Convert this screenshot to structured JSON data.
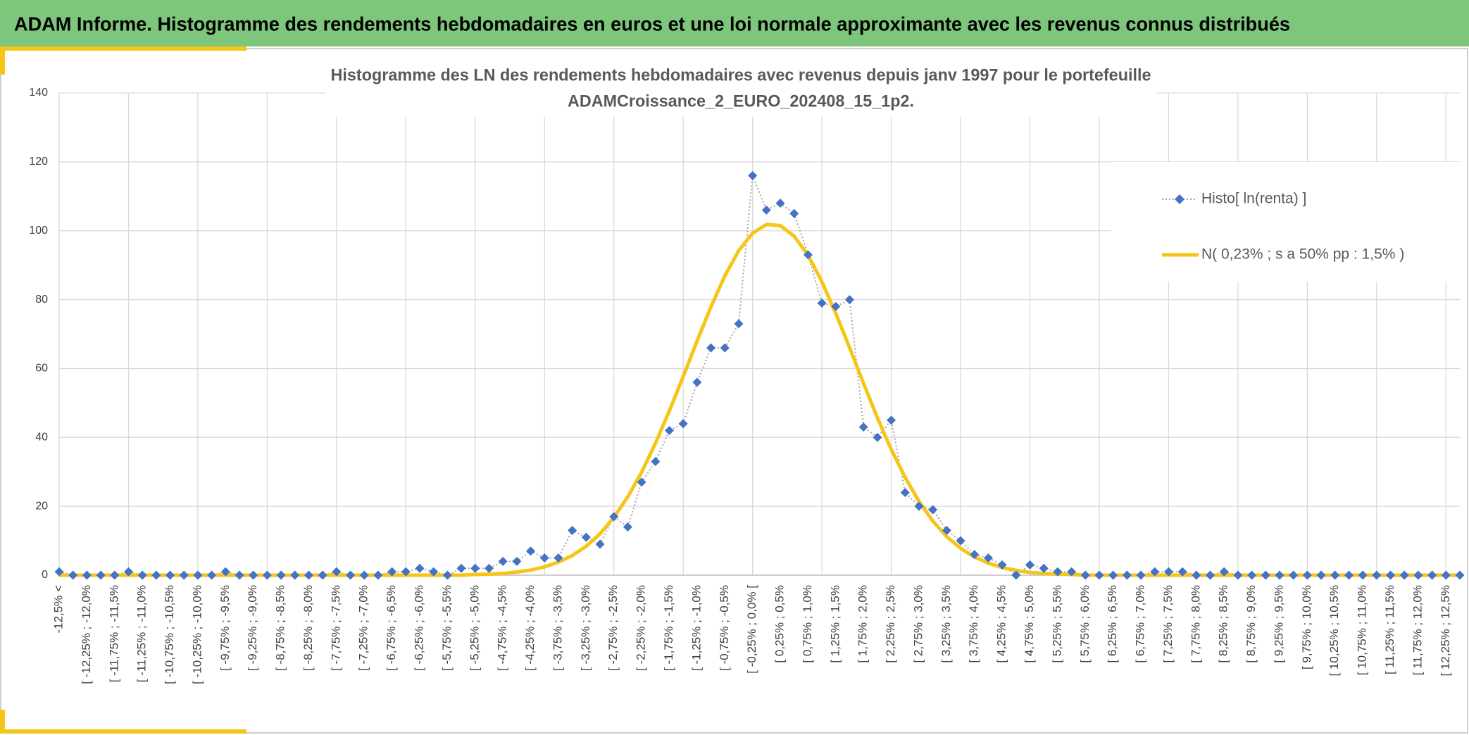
{
  "header": {
    "title": "ADAM Informe. Histogramme des rendements hebdomadaires en euros et une loi normale approximante avec les revenus connus distribués"
  },
  "chart_data": {
    "type": "line",
    "title_lines": [
      "Histogramme des LN des rendements hebdomadaires avec revenus depuis janv 1997 pour le portefeuille",
      "ADAMCroissance_2_EURO_202408_15_1p2."
    ],
    "categories": [
      "-12,5% <",
      null,
      "[ -12,25% ; -12,0%",
      null,
      "[ -11,75% ; -11,5%",
      null,
      "[ -11,25% ; -11,0%",
      null,
      "[ -10,75% ; -10,5%",
      null,
      "[ -10,25% ; -10,0%",
      null,
      "[ -9,75% ; -9,5%",
      null,
      "[ -9,25% ; -9,0%",
      null,
      "[ -8,75% ; -8,5%",
      null,
      "[ -8,25% ; -8,0%",
      null,
      "[ -7,75% ; -7,5%",
      null,
      "[ -7,25% ; -7,0%",
      null,
      "[ -6,75% ; -6,5%",
      null,
      "[ -6,25% ; -6,0%",
      null,
      "[ -5,75% ; -5,5%",
      null,
      "[ -5,25% ; -5,0%",
      null,
      "[ -4,75% ; -4,5%",
      null,
      "[ -4,25% ; -4,0%",
      null,
      "[ -3,75% ; -3,5%",
      null,
      "[ -3,25% ; -3,0%",
      null,
      "[ -2,75% ; -2,5%",
      null,
      "[ -2,25% ; -2,0%",
      null,
      "[ -1,75% ; -1,5%",
      null,
      "[ -1,25% ; -1,0%",
      null,
      "[ -0,75% ; -0,5%",
      null,
      "[ -0,25% ; 0,0% [",
      null,
      "[ 0,25% ; 0,5%",
      null,
      "[ 0,75% ; 1,0%",
      null,
      "[ 1,25% ; 1,5%",
      null,
      "[ 1,75% ; 2,0%",
      null,
      "[ 2,25% ; 2,5%",
      null,
      "[ 2,75% ; 3,0%",
      null,
      "[ 3,25% ; 3,5%",
      null,
      "[ 3,75% ; 4,0%",
      null,
      "[ 4,25% ; 4,5%",
      null,
      "[ 4,75% ; 5,0%",
      null,
      "[ 5,25% ; 5,5%",
      null,
      "[ 5,75% ; 6,0%",
      null,
      "[ 6,25% ; 6,5%",
      null,
      "[ 6,75% ; 7,0%",
      null,
      "[ 7,25% ; 7,5%",
      null,
      "[ 7,75% ; 8,0%",
      null,
      "[ 8,25% ; 8,5%",
      null,
      "[ 8,75% ; 9,0%",
      null,
      "[ 9,25% ; 9,5%",
      null,
      "[ 9,75% ; 10,0%",
      null,
      "[ 10,25% ; 10,5%",
      null,
      "[ 10,75% ; 11,0%",
      null,
      "[ 11,25% ; 11,5%",
      null,
      "[ 11,75% ; 12,0%",
      null,
      "[ 12,25% ; 12,5%",
      null
    ],
    "series": [
      {
        "name": "Histo[ ln(renta) ]",
        "color": "#4472c4",
        "values": [
          1,
          0,
          0,
          0,
          0,
          1,
          0,
          0,
          0,
          0,
          0,
          0,
          1,
          0,
          0,
          0,
          0,
          0,
          0,
          0,
          1,
          0,
          0,
          0,
          1,
          1,
          2,
          1,
          0,
          2,
          2,
          2,
          4,
          4,
          7,
          5,
          5,
          13,
          11,
          9,
          17,
          14,
          27,
          33,
          42,
          44,
          56,
          66,
          66,
          73,
          116,
          106,
          108,
          105,
          93,
          79,
          78,
          80,
          43,
          40,
          45,
          24,
          20,
          19,
          13,
          10,
          6,
          5,
          3,
          0,
          3,
          2,
          1,
          1,
          0,
          0,
          0,
          0,
          0,
          1,
          1,
          1,
          0,
          0,
          1,
          0,
          0,
          0,
          0,
          0,
          0,
          0,
          0,
          0,
          0,
          0,
          0,
          0,
          0,
          0,
          0,
          0
        ]
      },
      {
        "name": "N( 0,23% ; s a 50% pp : 1,5% )",
        "color": "#f5c518",
        "values": [
          0,
          0,
          0,
          0,
          0,
          0,
          0,
          0,
          0,
          0,
          0,
          0,
          0,
          0,
          0,
          0,
          0,
          0,
          0,
          0,
          0,
          0,
          0,
          0,
          0,
          0,
          0,
          0,
          0,
          0,
          0.2,
          0.3,
          0.5,
          0.9,
          1.5,
          2.4,
          3.8,
          5.7,
          8.4,
          12.0,
          16.8,
          22.7,
          29.9,
          38.3,
          47.7,
          57.7,
          68.0,
          77.9,
          86.9,
          94.2,
          99.3,
          101.8,
          101.5,
          98.4,
          92.9,
          85.2,
          76.0,
          66.0,
          55.7,
          45.7,
          36.5,
          28.4,
          21.4,
          15.7,
          11.2,
          7.8,
          5.3,
          3.5,
          2.2,
          1.4,
          0.8,
          0.5,
          0.3,
          0.2,
          0,
          0,
          0,
          0,
          0,
          0,
          0,
          0,
          0,
          0,
          0,
          0,
          0,
          0,
          0,
          0,
          0,
          0,
          0,
          0,
          0,
          0,
          0,
          0,
          0,
          0,
          0,
          0
        ]
      }
    ],
    "ylim": [
      0,
      140
    ],
    "yticks": [
      0,
      20,
      40,
      60,
      80,
      100,
      120,
      140
    ],
    "grid": true,
    "legend": "right"
  }
}
